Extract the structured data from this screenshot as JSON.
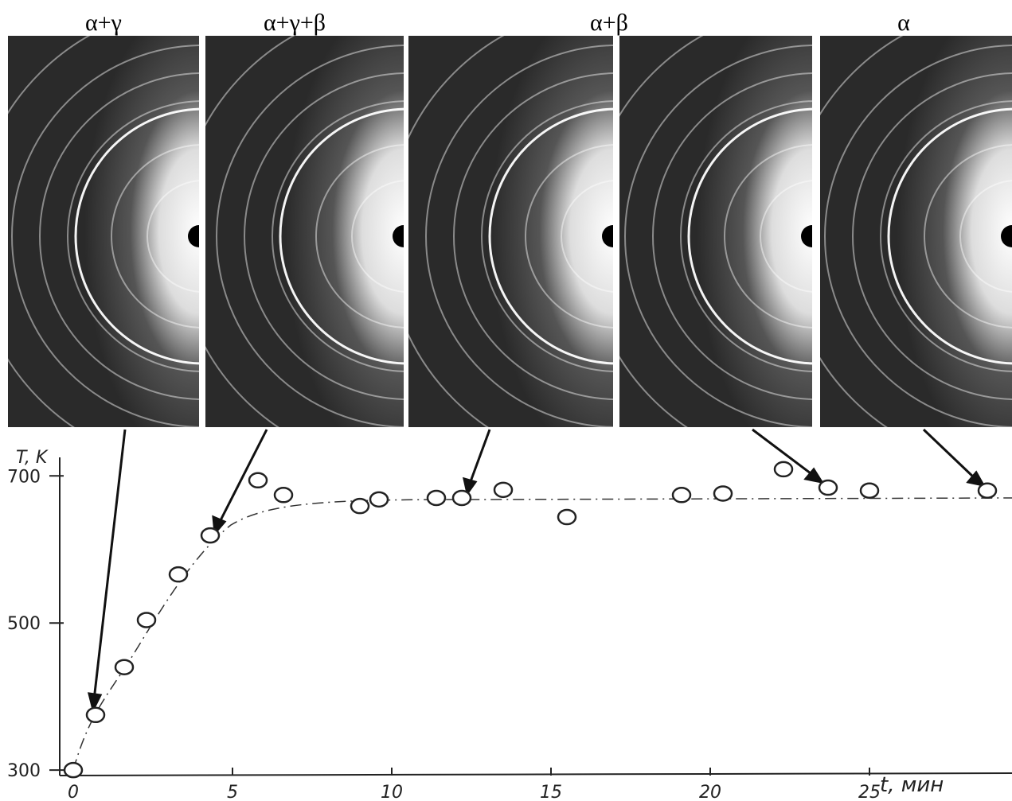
{
  "chart_data": {
    "type": "scatter",
    "panels": [
      "α+γ",
      "α+γ+β",
      "α+β",
      "α"
    ],
    "y_label": "T, K",
    "x_label": "t, мин",
    "x": [
      0,
      0.7,
      1.6,
      2.3,
      3.3,
      4.3,
      5.8,
      6.6,
      9.0,
      9.6,
      11.4,
      12.2,
      13.5,
      15.5,
      19.1,
      20.4,
      22.3,
      23.7,
      25.0,
      28.7
    ],
    "values": [
      300,
      375,
      440,
      504,
      566,
      619,
      694,
      674,
      659,
      668,
      670,
      670,
      681,
      644,
      674,
      676,
      709,
      684,
      680,
      680
    ],
    "xlim": [
      0,
      29.5
    ],
    "ylim": [
      258,
      763
    ],
    "xticks": [
      0,
      5,
      10,
      15,
      20,
      25
    ],
    "yticks": [
      300,
      500,
      700
    ],
    "color": "#222222"
  }
}
